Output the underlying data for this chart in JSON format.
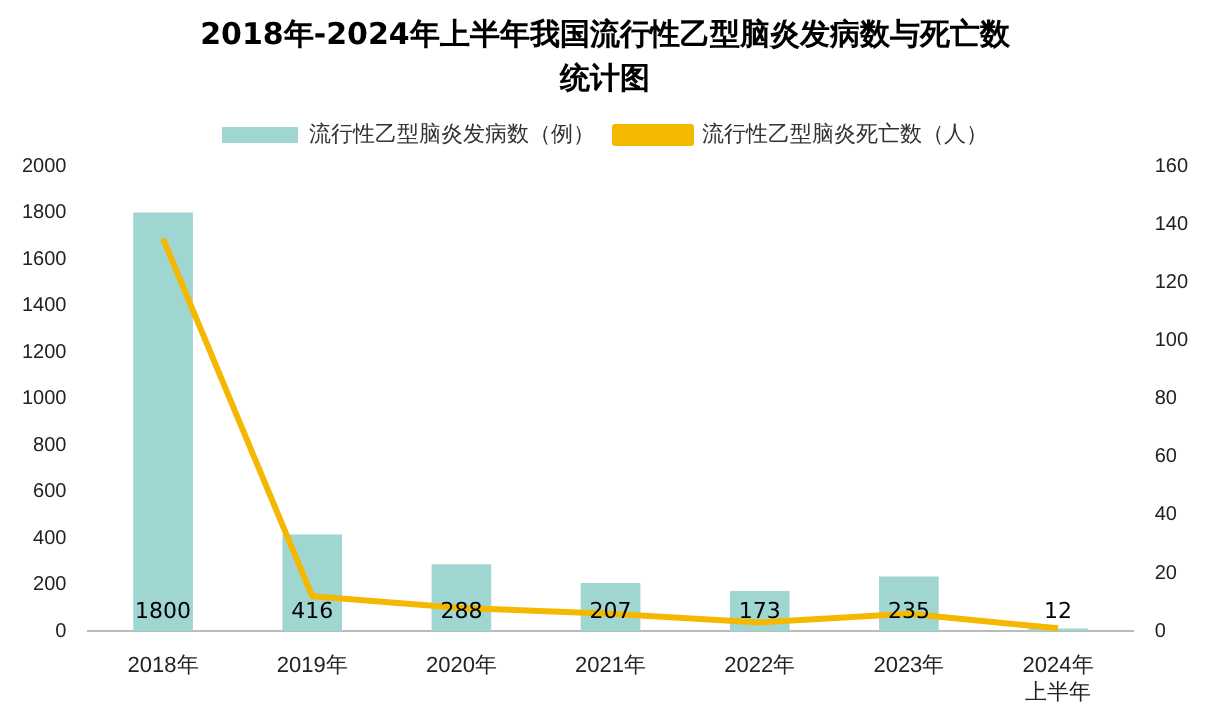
{
  "chart_data": {
    "type": "bar",
    "title": "2018年-2024年上半年我国流行性乙型脑炎发病数与死亡数统计图",
    "categories": [
      "2018年",
      "2019年",
      "2020年",
      "2021年",
      "2022年",
      "2023年",
      "2024年上半年"
    ],
    "series": [
      {
        "name": "流行性乙型脑炎发病数（例）",
        "color": "#a0d6d2",
        "values": [
          1800,
          416,
          288,
          207,
          173,
          235,
          12
        ],
        "data_labels": true
      },
      {
        "name": "流行性乙型脑炎死亡数（人）",
        "type": "line",
        "axis": "y2",
        "color": "#f5b800",
        "values": [
          135,
          12,
          8,
          6,
          3,
          6,
          1
        ]
      }
    ],
    "ylim": [
      0,
      2000
    ],
    "yticks": [
      0,
      200,
      400,
      600,
      800,
      1000,
      1200,
      1400,
      1600,
      1800,
      2000
    ],
    "y2lim": [
      0,
      160
    ],
    "y2ticks": [
      0,
      20,
      40,
      60,
      80,
      100,
      120,
      140,
      160
    ],
    "legend": "top",
    "grid": false,
    "marker": "none"
  }
}
